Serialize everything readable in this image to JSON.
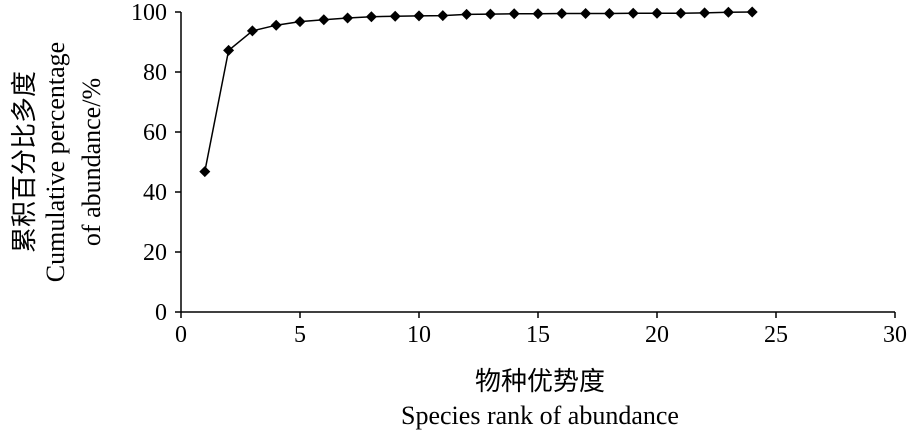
{
  "chart_data": {
    "type": "line",
    "xlabel_cn": "物种优势度",
    "xlabel_en": "Species rank of abundance",
    "ylabel_cn": "累积百分比多度",
    "ylabel_en_line1": "Cumulative percentage",
    "ylabel_en_line2": "of abundance/%",
    "xlim": [
      0,
      30
    ],
    "ylim": [
      0,
      100
    ],
    "xticks": [
      0,
      5,
      10,
      15,
      20,
      25,
      30
    ],
    "yticks": [
      0,
      20,
      40,
      60,
      80,
      100
    ],
    "grid": false,
    "marker": "diamond",
    "series": [
      {
        "x": [
          1,
          2,
          3,
          4,
          5,
          6,
          7,
          8,
          9,
          10,
          11,
          12,
          13,
          14,
          15,
          16,
          17,
          18,
          19,
          20,
          21,
          22,
          23,
          24
        ],
        "values": [
          46.8,
          87.2,
          93.7,
          95.6,
          96.8,
          97.4,
          98.0,
          98.4,
          98.6,
          98.7,
          98.8,
          99.2,
          99.3,
          99.4,
          99.4,
          99.5,
          99.5,
          99.5,
          99.6,
          99.6,
          99.6,
          99.7,
          99.9,
          100.0
        ]
      }
    ]
  }
}
